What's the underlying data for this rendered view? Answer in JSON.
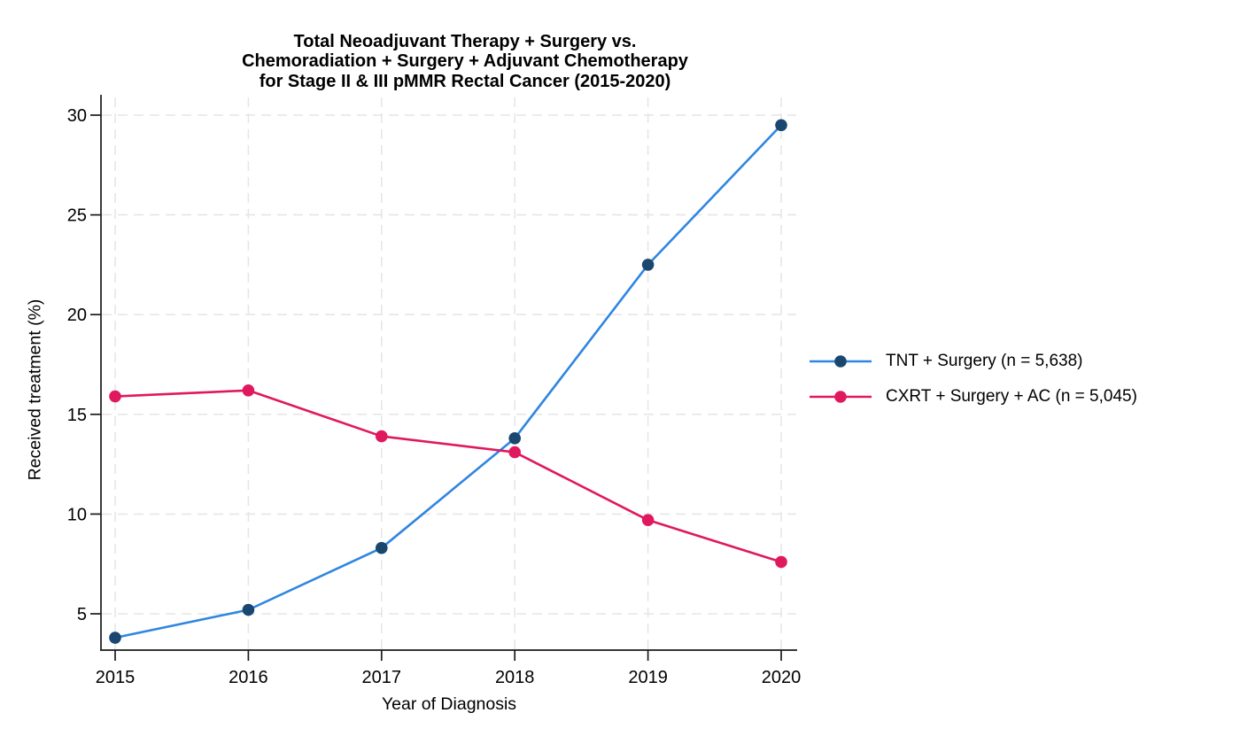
{
  "chart_data": {
    "type": "line",
    "title": "Total Neoadjuvant Therapy + Surgery vs. Chemoradiation + Surgery + Adjuvant Chemotherapy for Stage II & III pMMR Rectal Cancer (2015-2020)",
    "title_lines": [
      "Total Neoadjuvant Therapy + Surgery vs.",
      "Chemoradiation + Surgery + Adjuvant Chemotherapy",
      "for Stage II & III pMMR Rectal Cancer (2015-2020)"
    ],
    "xlabel": "Year of Diagnosis",
    "ylabel": "Received treatment (%)",
    "x": [
      2015,
      2016,
      2017,
      2018,
      2019,
      2020
    ],
    "x_tick_labels": [
      "2015",
      "2016",
      "2017",
      "2018",
      "2019",
      "2020"
    ],
    "y_ticks": [
      5,
      10,
      15,
      20,
      25,
      30
    ],
    "y_tick_labels": [
      "5",
      "10",
      "15",
      "20",
      "25",
      "30"
    ],
    "ylim": [
      3.2,
      31
    ],
    "grid": "dashed-both-axes",
    "legend_position": "right-outside",
    "series": [
      {
        "name": "TNT + Surgery (n = 5,638)",
        "values": [
          3.8,
          5.2,
          8.3,
          13.8,
          22.5,
          29.5
        ],
        "line_color": "#2F86E0",
        "marker_color": "#1A476F"
      },
      {
        "name": "CXRT + Surgery + AC (n = 5,045)",
        "values": [
          15.9,
          16.2,
          13.9,
          13.1,
          9.7,
          7.6
        ],
        "line_color": "#E0195F",
        "marker_color": "#E0195F"
      }
    ],
    "colors": {
      "grid": "#E6E6E6",
      "axis": "#1A1A1A",
      "text": "#000000",
      "background": "#FFFFFF"
    }
  }
}
